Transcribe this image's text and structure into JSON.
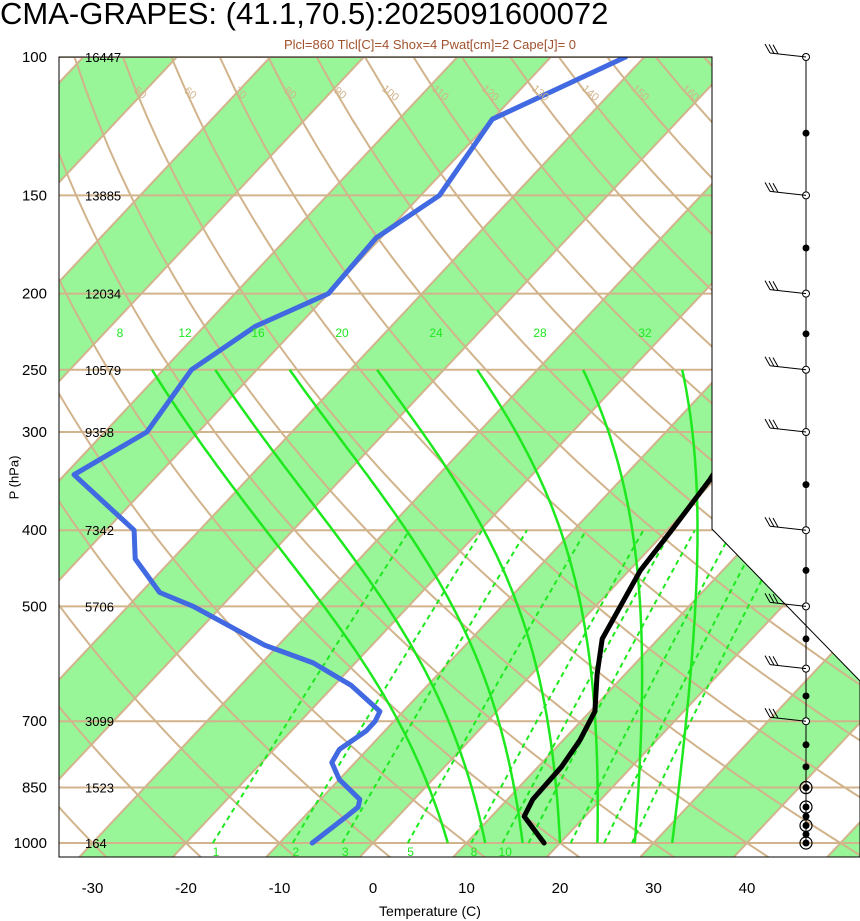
{
  "title": "CMA-GRAPES: (41.1,70.5):2025091600072",
  "subtitle": "Plcl=860 Tlcl[C]=4 Shox=4 Pwat[cm]=2 Cape[J]= 0",
  "colors": {
    "band": "#98f598",
    "tan": "#d2b48c",
    "green": "#1ee81e",
    "temperature": "#000000",
    "dewpoint": "#4169e1"
  },
  "chart_data": {
    "type": "line",
    "title": "CMA-GRAPES: (41.1,70.5):2025091600072",
    "xlabel": "Temperature (C)",
    "ylabel": "P (hPa)",
    "xlim": [
      -33,
      50
    ],
    "x_ticks": [
      "-30",
      "-20",
      "-10",
      "0",
      "10",
      "20",
      "30",
      "40"
    ],
    "pressure_levels": [
      {
        "p": 100,
        "label": "100",
        "height": "16447"
      },
      {
        "p": 150,
        "label": "150",
        "height": "13885"
      },
      {
        "p": 200,
        "label": "200",
        "height": "12034"
      },
      {
        "p": 250,
        "label": "250",
        "height": "10579"
      },
      {
        "p": 300,
        "label": "300",
        "height": "9358"
      },
      {
        "p": 400,
        "label": "400",
        "height": "7342"
      },
      {
        "p": 500,
        "label": "500",
        "height": "5706"
      },
      {
        "p": 700,
        "label": "700",
        "height": "3099"
      },
      {
        "p": 850,
        "label": "850",
        "height": "1523"
      },
      {
        "p": 1000,
        "label": "1000",
        "height": "164"
      }
    ],
    "series": [
      {
        "name": "temperature",
        "points": [
          [
            1000,
            18.3
          ],
          [
            925,
            13.5
          ],
          [
            880,
            12.7
          ],
          [
            800,
            12.5
          ],
          [
            740,
            11.8
          ],
          [
            680,
            10.5
          ],
          [
            610,
            7
          ],
          [
            550,
            4
          ],
          [
            450,
            1.2
          ],
          [
            400,
            0.5
          ],
          [
            345,
            -0.5
          ],
          [
            300,
            -2
          ],
          [
            255,
            -3.8
          ],
          [
            225,
            -2.5
          ],
          [
            200,
            -0.5
          ],
          [
            165,
            3
          ],
          [
            130,
            6.5
          ],
          [
            100,
            10.5
          ]
        ]
      },
      {
        "name": "dewpoint",
        "points": [
          [
            1000,
            -6.5
          ],
          [
            925,
            -5.5
          ],
          [
            900,
            -5.2
          ],
          [
            880,
            -5.8
          ],
          [
            830,
            -10
          ],
          [
            790,
            -12.5
          ],
          [
            760,
            -13
          ],
          [
            720,
            -12
          ],
          [
            700,
            -12
          ],
          [
            680,
            -12.5
          ],
          [
            630,
            -18.2
          ],
          [
            590,
            -24.5
          ],
          [
            560,
            -31.5
          ],
          [
            500,
            -43
          ],
          [
            480,
            -48
          ],
          [
            435,
            -54
          ],
          [
            400,
            -57
          ],
          [
            340,
            -69
          ],
          [
            300,
            -65.5
          ],
          [
            250,
            -67
          ],
          [
            220,
            -64.5
          ],
          [
            200,
            -60
          ],
          [
            170,
            -60.5
          ],
          [
            150,
            -58
          ],
          [
            120,
            -60
          ],
          [
            100,
            -52
          ]
        ]
      }
    ],
    "dry_adiabat_labels": [
      "50",
      "60",
      "70",
      "80",
      "90",
      "100",
      "110",
      "120",
      "130",
      "140",
      "150",
      "160",
      "40",
      "30",
      "20",
      "10",
      "0",
      "-10",
      "-20",
      "-30"
    ],
    "dry_adiabat_right_labels": [
      "30",
      "20",
      "10",
      "0",
      "-10",
      "-20",
      "-30"
    ],
    "mixing_ratio_labels": [
      "1",
      "2",
      "3",
      "5",
      "8",
      "10"
    ],
    "moist_adiabat_labels": [
      "8",
      "12",
      "16",
      "20",
      "24",
      "28",
      "32"
    ],
    "wind_levels": [
      1000,
      975,
      950,
      925,
      900,
      850,
      800,
      750,
      700,
      650,
      600,
      550,
      500,
      450,
      400,
      350,
      300,
      250,
      225,
      200,
      175,
      150,
      125,
      100
    ],
    "wind_barb_levels": [
      100,
      150,
      200,
      250,
      300,
      400,
      500,
      600,
      700
    ],
    "wind_calm_levels": [
      1000,
      950,
      900,
      850
    ]
  }
}
